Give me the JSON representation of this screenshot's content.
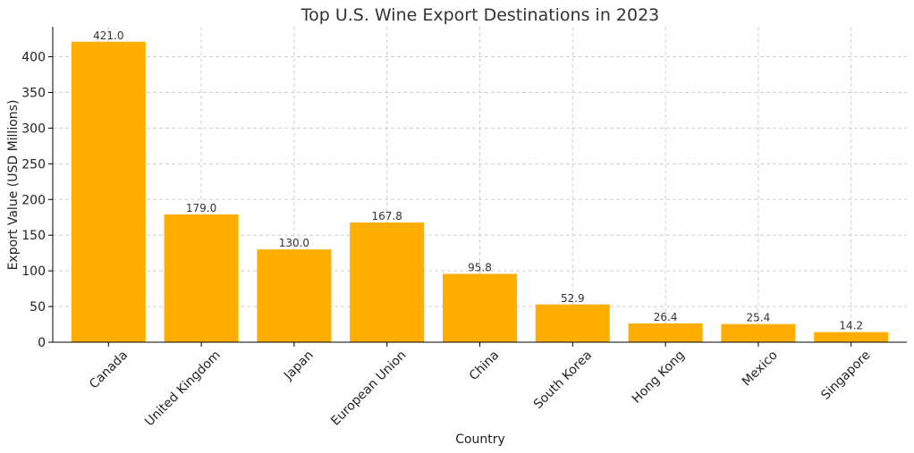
{
  "chart_data": {
    "type": "bar",
    "title": "Top U.S. Wine Export Destinations in 2023",
    "xlabel": "Country",
    "ylabel": "Export Value (USD Millions)",
    "categories": [
      "Canada",
      "United Kingdom",
      "Japan",
      "European Union",
      "China",
      "South Korea",
      "Hong Kong",
      "Mexico",
      "Singapore"
    ],
    "values": [
      421.0,
      179.0,
      130.0,
      167.8,
      95.8,
      52.9,
      26.4,
      25.4,
      14.2
    ],
    "value_labels": [
      "421.0",
      "179.0",
      "130.0",
      "167.8",
      "95.8",
      "52.9",
      "26.4",
      "25.4",
      "14.2"
    ],
    "yticks": [
      0,
      50,
      100,
      150,
      200,
      250,
      300,
      350,
      400
    ],
    "ylim": [
      0,
      442
    ],
    "grid": true,
    "bar_color": "#FFAE00"
  }
}
